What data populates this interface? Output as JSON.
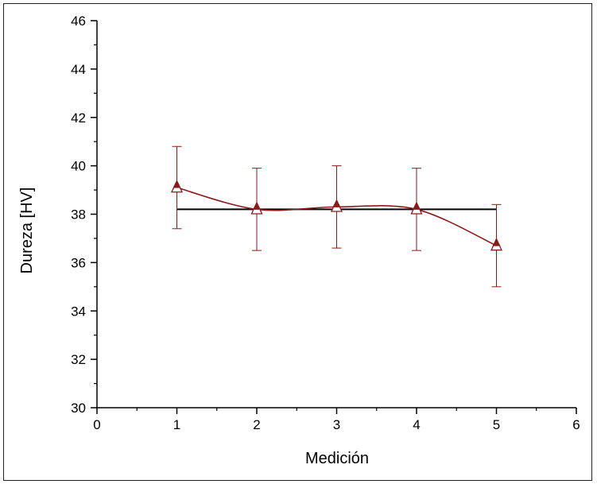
{
  "chart_data": {
    "type": "line",
    "title": "",
    "xlabel": "Medición",
    "ylabel": "Dureza [HV]",
    "xlim": [
      0,
      6
    ],
    "ylim": [
      30,
      46
    ],
    "xticks": [
      0,
      1,
      2,
      3,
      4,
      5,
      6
    ],
    "yticks": [
      30,
      32,
      34,
      36,
      38,
      40,
      42,
      44,
      46
    ],
    "grid": false,
    "series": [
      {
        "x": [
          1,
          2,
          3,
          4,
          5
        ],
        "y": [
          39.1,
          38.2,
          38.3,
          38.2,
          36.7
        ],
        "error": [
          1.7,
          1.7,
          1.7,
          1.7,
          1.7
        ],
        "marker": "triangle",
        "color": "#8b1a1a"
      },
      {
        "x": [
          1,
          5
        ],
        "y": [
          38.2,
          38.2
        ],
        "color": "#000000"
      }
    ]
  }
}
